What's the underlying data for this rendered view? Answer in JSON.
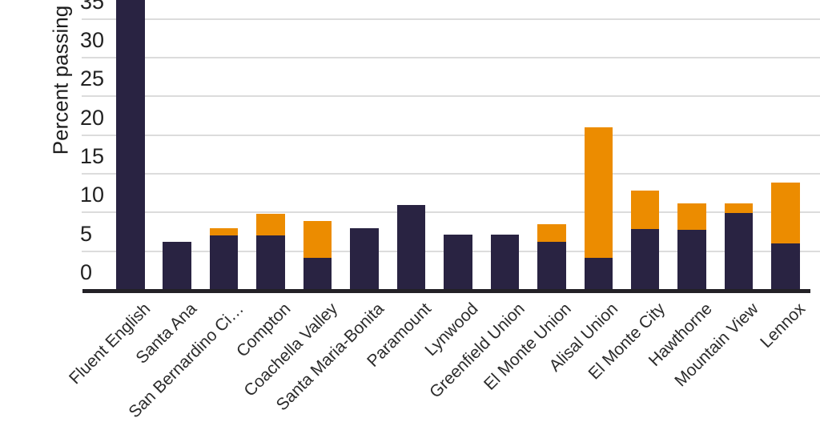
{
  "chart_data": {
    "type": "bar",
    "stacked": true,
    "title": "",
    "xlabel": "",
    "ylabel": "Percent passing",
    "categories": [
      "Fluent English",
      "Santa Ana",
      "San Bernardino Ci…",
      "Compton",
      "Coachella Valley",
      "Santa Maria-Bonita",
      "Paramount",
      "Lynwood",
      "Greenfield Union",
      "El Monte Union",
      "Alisal Union",
      "El Monte City",
      "Hawthorne",
      "Mountain View",
      "Lennox"
    ],
    "series": [
      {
        "name": "navy-segment",
        "color": "#292342",
        "values": [
          38,
          6.2,
          7.0,
          7.0,
          4.1,
          8.0,
          11.0,
          7.1,
          7.1,
          6.2,
          4.1,
          7.9,
          7.8,
          9.9,
          6.0
        ]
      },
      {
        "name": "orange-segment",
        "color": "#ec8c00",
        "values": [
          0,
          0,
          1.0,
          2.8,
          4.8,
          0,
          0,
          0,
          0,
          2.3,
          16.9,
          4.9,
          3.4,
          1.3,
          7.9
        ]
      }
    ],
    "totals": [
      38,
      6.2,
      8.0,
      9.8,
      8.9,
      8.0,
      11.0,
      7.1,
      7.1,
      8.5,
      21.0,
      12.8,
      11.2,
      11.2,
      13.9
    ],
    "yticks": [
      0,
      5,
      10,
      15,
      20,
      25,
      30,
      35
    ],
    "ylim_visible": [
      0,
      37.5
    ],
    "grid": true,
    "legend": "none",
    "x_tick_rotation": -45,
    "first_bar_clipped_at_top": true
  },
  "colors": {
    "navy": "#292342",
    "orange": "#ec8c00",
    "gridline": "#dcdcdc",
    "axis_line": "#232126",
    "tick_text": "#222222",
    "label_text": "#2b2b2b"
  }
}
